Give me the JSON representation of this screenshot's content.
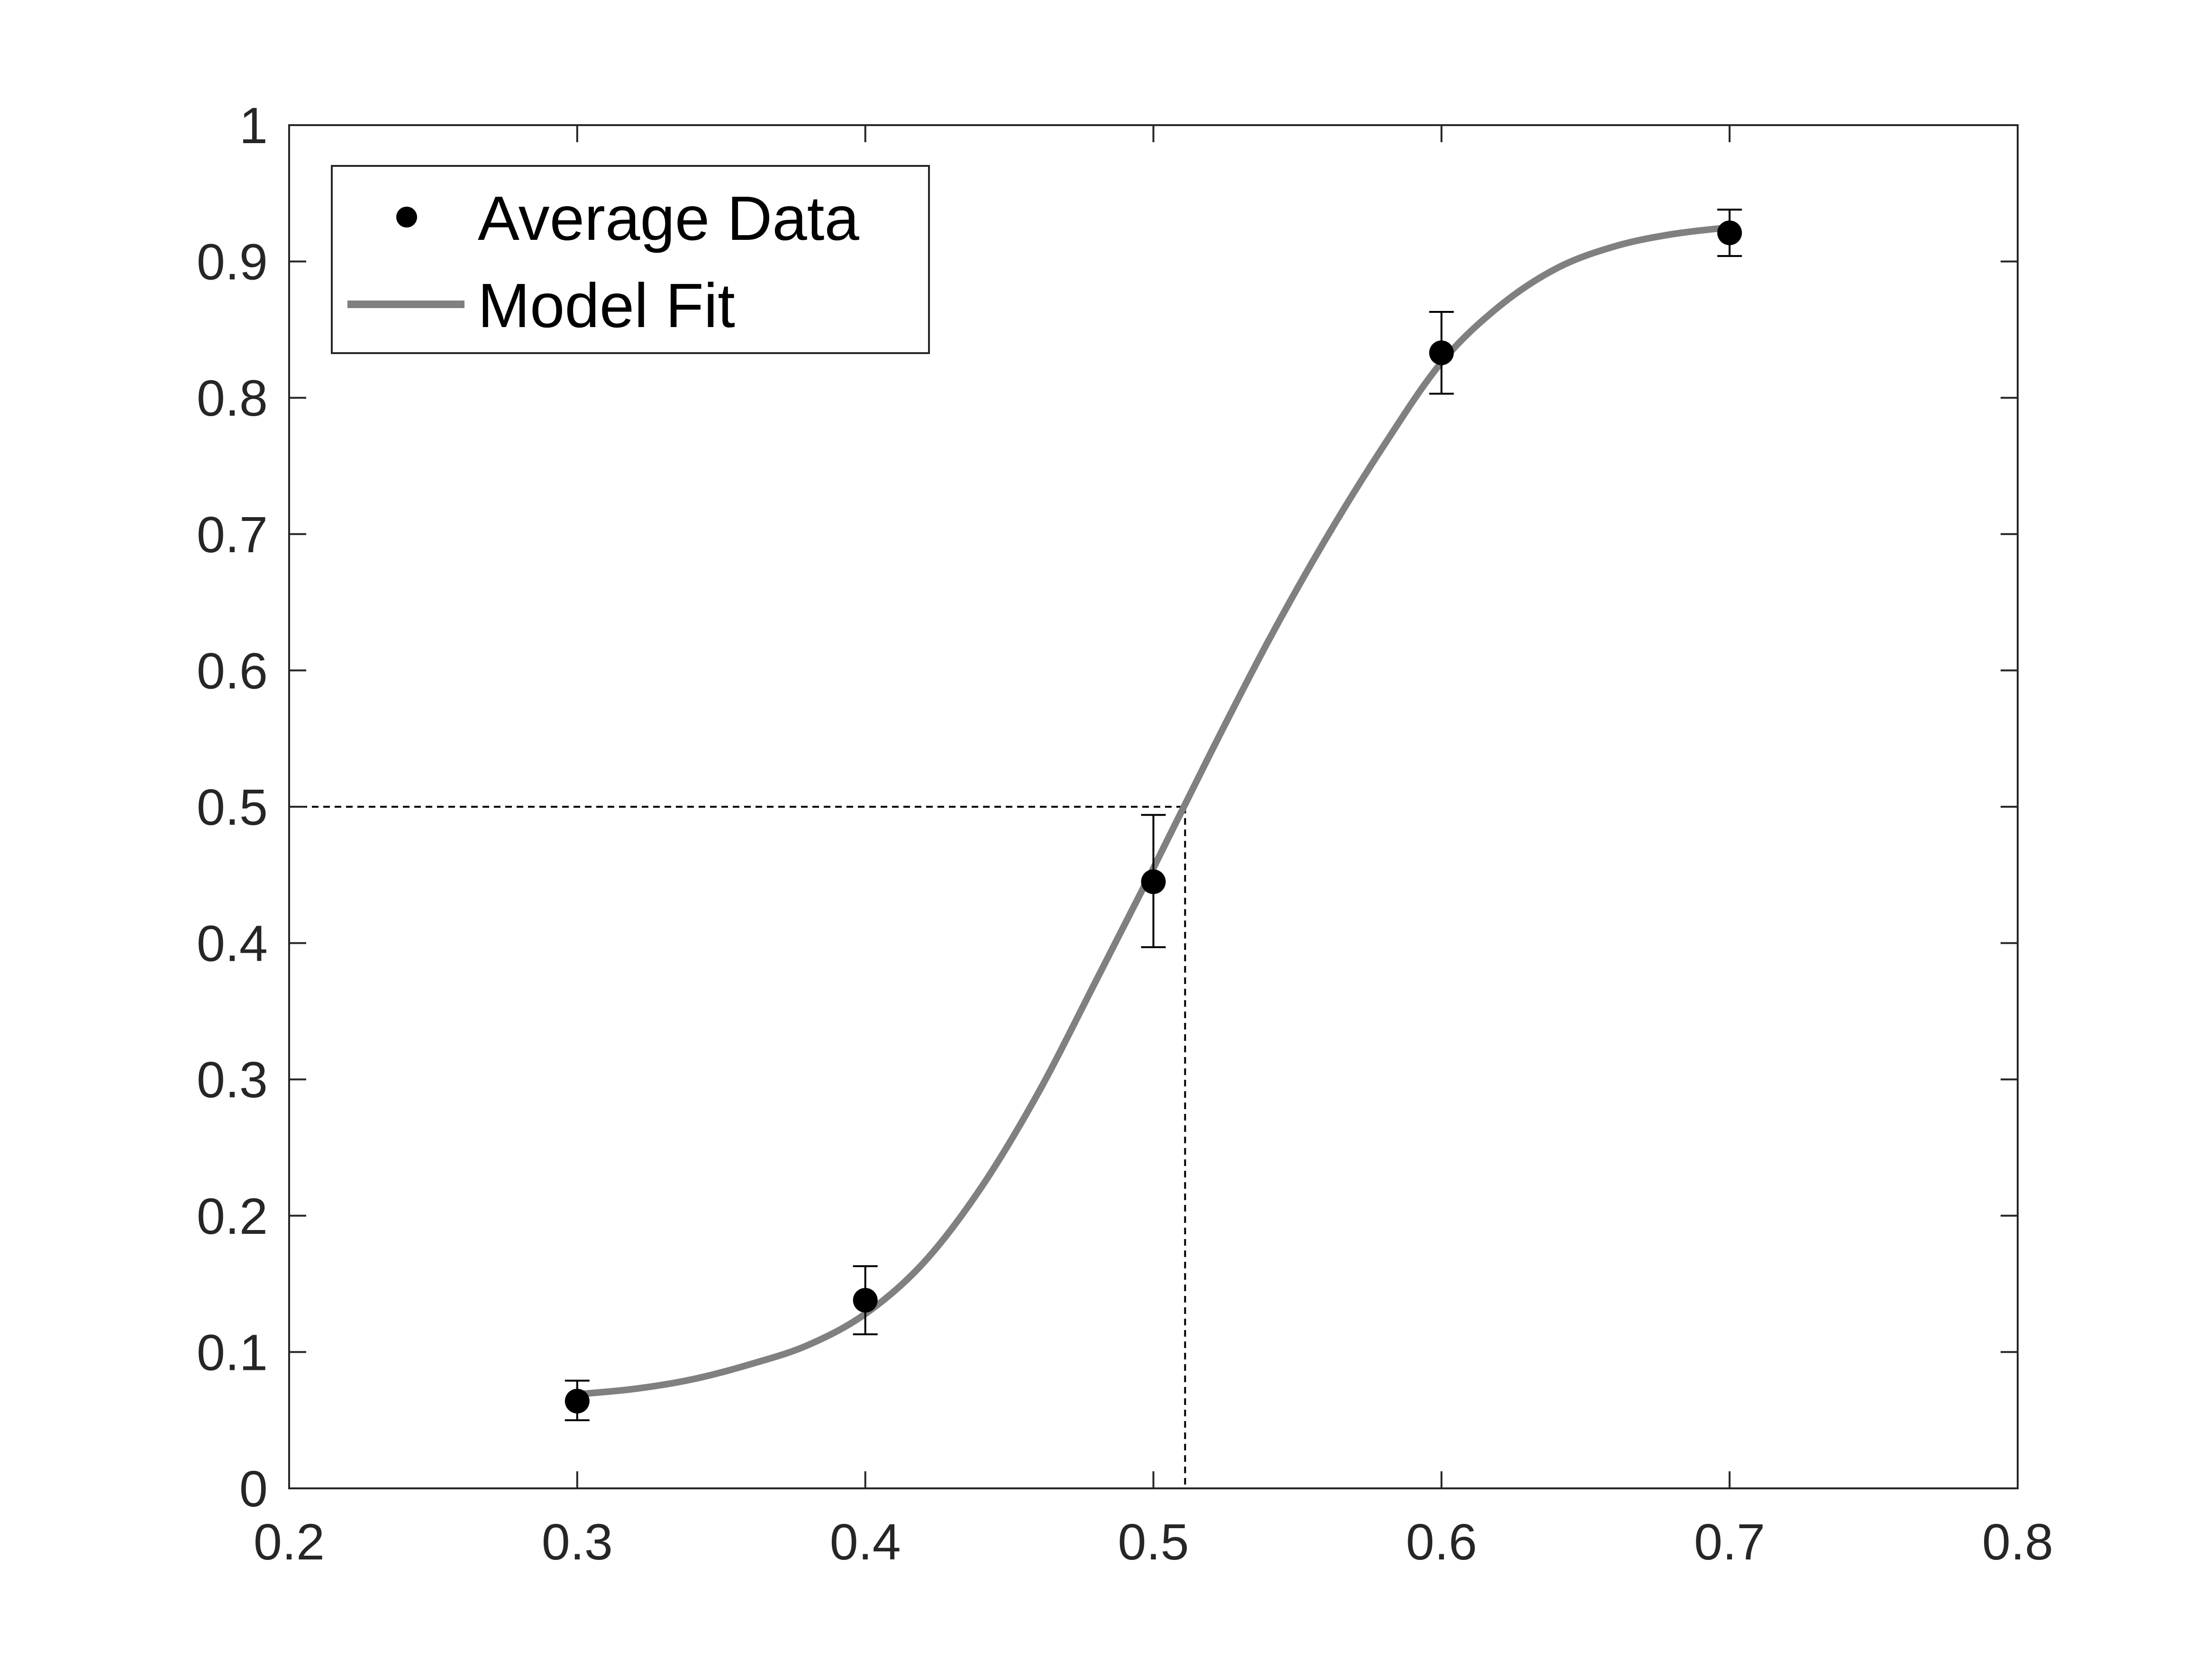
{
  "chart_data": {
    "type": "scatter",
    "title": "",
    "xlabel": "",
    "ylabel": "",
    "xlim": [
      0.2,
      0.8
    ],
    "ylim": [
      0,
      1
    ],
    "x_ticks": [
      "0.2",
      "0.3",
      "0.4",
      "0.5",
      "0.6",
      "0.7",
      "0.8"
    ],
    "y_ticks": [
      "0",
      "0.1",
      "0.2",
      "0.3",
      "0.4",
      "0.5",
      "0.6",
      "0.7",
      "0.8",
      "0.9",
      "1"
    ],
    "grid": false,
    "legend_position": "top-left",
    "legend": [
      "Average Data",
      "Model Fit"
    ],
    "series": [
      {
        "name": "Average Data",
        "kind": "points_with_error_bars",
        "color": "#000000",
        "x": [
          0.3,
          0.4,
          0.5,
          0.6,
          0.7
        ],
        "y": [
          0.064,
          0.138,
          0.445,
          0.833,
          0.921
        ],
        "err_low": [
          0.05,
          0.113,
          0.397,
          0.803,
          0.904
        ],
        "err_high": [
          0.079,
          0.163,
          0.494,
          0.863,
          0.938
        ]
      },
      {
        "name": "Model Fit",
        "kind": "line",
        "color": "#808080",
        "x": [
          0.3,
          0.32,
          0.34,
          0.36,
          0.38,
          0.4,
          0.42,
          0.44,
          0.46,
          0.48,
          0.5,
          0.52,
          0.54,
          0.56,
          0.58,
          0.6,
          0.62,
          0.64,
          0.66,
          0.68,
          0.7
        ],
        "y": [
          0.069,
          0.073,
          0.08,
          0.091,
          0.105,
          0.128,
          0.165,
          0.22,
          0.29,
          0.372,
          0.455,
          0.54,
          0.622,
          0.697,
          0.765,
          0.826,
          0.867,
          0.895,
          0.911,
          0.92,
          0.925
        ]
      }
    ],
    "reference_lines": [
      {
        "style": "dashed",
        "color": "#000000",
        "x": 0.511,
        "y": 0.5
      }
    ]
  }
}
